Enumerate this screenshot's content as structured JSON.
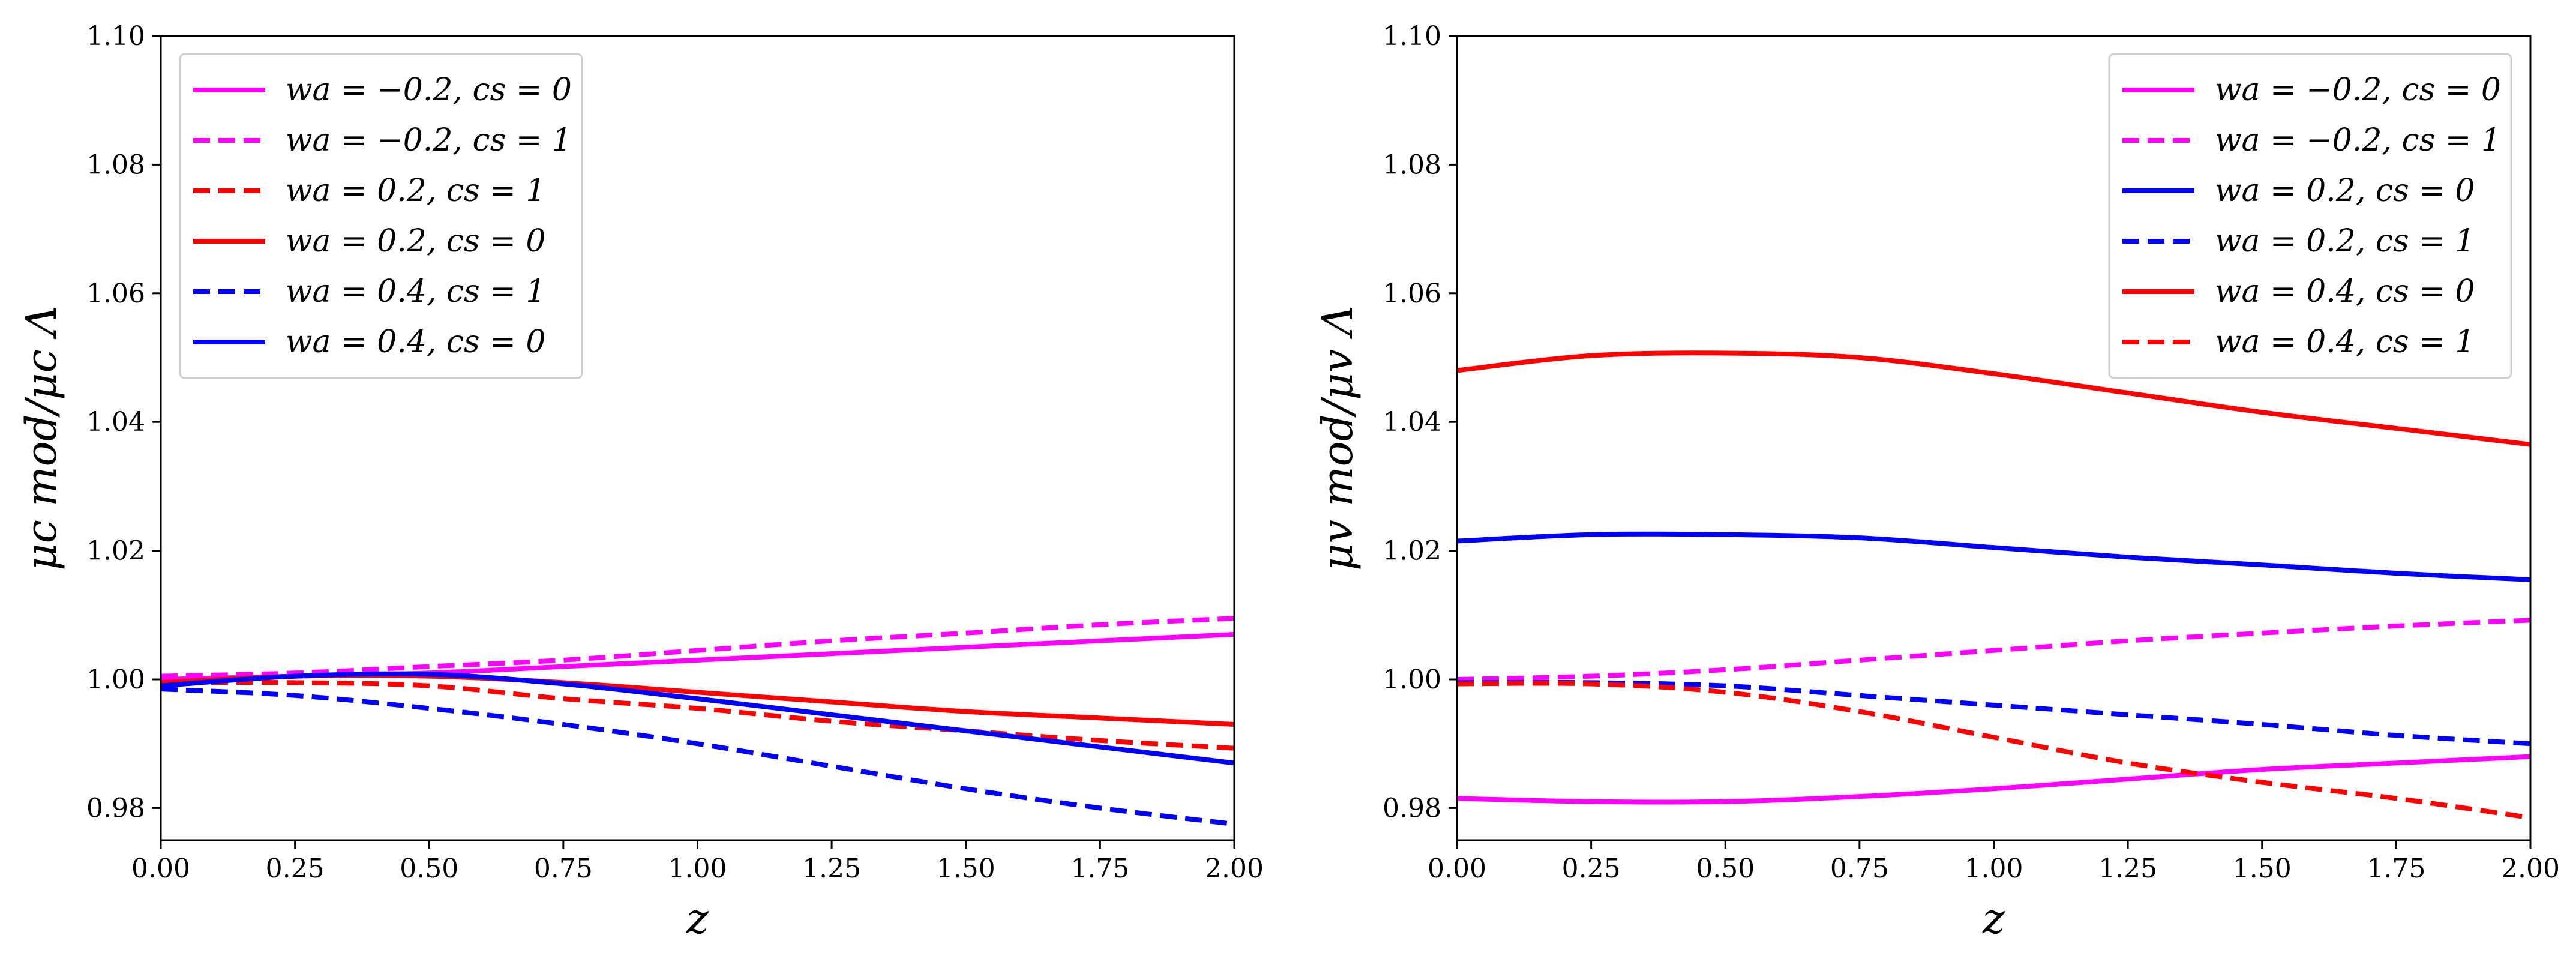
{
  "chart_data": [
    {
      "type": "line",
      "xlabel": "z",
      "ylabel": "μc mod/μc Λ",
      "xlim": [
        0,
        2
      ],
      "ylim": [
        0.975,
        1.1
      ],
      "xticks": [
        "0.00",
        "0.25",
        "0.50",
        "0.75",
        "1.00",
        "1.25",
        "1.50",
        "1.75",
        "2.00"
      ],
      "yticks": [
        "0.98",
        "1.00",
        "1.02",
        "1.04",
        "1.06",
        "1.08",
        "1.10"
      ],
      "legend_position": "upper-left",
      "x": [
        0,
        0.25,
        0.5,
        0.75,
        1.0,
        1.25,
        1.5,
        1.75,
        2.0
      ],
      "series": [
        {
          "name": "wa = −0.2, cs = 0",
          "color": "#ff00ff",
          "dash": "solid",
          "values": [
            1.0,
            1.0005,
            1.001,
            1.002,
            1.003,
            1.004,
            1.005,
            1.006,
            1.007
          ]
        },
        {
          "name": "wa = −0.2, cs = 1",
          "color": "#ff00ff",
          "dash": "dashed",
          "values": [
            1.0005,
            1.001,
            1.002,
            1.003,
            1.0045,
            1.006,
            1.0072,
            1.0085,
            1.0095
          ]
        },
        {
          "name": "wa = 0.2, cs = 1",
          "color": "#ff0000",
          "dash": "dashed",
          "values": [
            0.9995,
            0.9995,
            0.999,
            0.997,
            0.9955,
            0.9935,
            0.992,
            0.9905,
            0.9893
          ]
        },
        {
          "name": "wa = 0.2, cs = 0",
          "color": "#ff0000",
          "dash": "solid",
          "values": [
            0.9995,
            1.0005,
            1.0005,
            0.9995,
            0.998,
            0.9965,
            0.995,
            0.994,
            0.993
          ]
        },
        {
          "name": "wa = 0.4, cs = 1",
          "color": "#0000ff",
          "dash": "dashed",
          "values": [
            0.9985,
            0.9975,
            0.9955,
            0.993,
            0.99,
            0.9865,
            0.983,
            0.98,
            0.9775
          ]
        },
        {
          "name": "wa = 0.4, cs = 0",
          "color": "#0000ff",
          "dash": "solid",
          "values": [
            0.999,
            1.0005,
            1.0008,
            0.9993,
            0.997,
            0.9945,
            0.992,
            0.9895,
            0.987
          ]
        }
      ]
    },
    {
      "type": "line",
      "xlabel": "z",
      "ylabel": "μv mod/μv Λ",
      "xlim": [
        0,
        2
      ],
      "ylim": [
        0.975,
        1.1
      ],
      "xticks": [
        "0.00",
        "0.25",
        "0.50",
        "0.75",
        "1.00",
        "1.25",
        "1.50",
        "1.75",
        "2.00"
      ],
      "yticks": [
        "0.98",
        "1.00",
        "1.02",
        "1.04",
        "1.06",
        "1.08",
        "1.10"
      ],
      "legend_position": "upper-right",
      "x": [
        0,
        0.25,
        0.5,
        0.75,
        1.0,
        1.25,
        1.5,
        1.75,
        2.0
      ],
      "series": [
        {
          "name": "wa = −0.2, cs = 0",
          "color": "#ff00ff",
          "dash": "solid",
          "values": [
            0.9815,
            0.981,
            0.981,
            0.9818,
            0.983,
            0.9845,
            0.986,
            0.987,
            0.988
          ]
        },
        {
          "name": "wa = −0.2, cs = 1",
          "color": "#ff00ff",
          "dash": "dashed",
          "values": [
            1.0,
            1.0005,
            1.0015,
            1.003,
            1.0045,
            1.006,
            1.0072,
            1.0083,
            1.0092
          ]
        },
        {
          "name": "wa = 0.2, cs = 0",
          "color": "#0000ff",
          "dash": "solid",
          "values": [
            1.0215,
            1.0225,
            1.0225,
            1.022,
            1.0205,
            1.019,
            1.0178,
            1.0165,
            1.0155
          ]
        },
        {
          "name": "wa = 0.2, cs = 1",
          "color": "#0000ff",
          "dash": "dashed",
          "values": [
            0.9995,
            0.9995,
            0.999,
            0.9975,
            0.996,
            0.9945,
            0.993,
            0.9913,
            0.99
          ]
        },
        {
          "name": "wa = 0.4, cs = 0",
          "color": "#ff0000",
          "dash": "solid",
          "values": [
            1.048,
            1.0503,
            1.0507,
            1.05,
            1.0475,
            1.0445,
            1.0415,
            1.039,
            1.0365
          ]
        },
        {
          "name": "wa = 0.4, cs = 1",
          "color": "#ff0000",
          "dash": "dashed",
          "values": [
            0.9993,
            0.9993,
            0.998,
            0.995,
            0.991,
            0.987,
            0.984,
            0.9815,
            0.9785
          ]
        }
      ]
    }
  ]
}
